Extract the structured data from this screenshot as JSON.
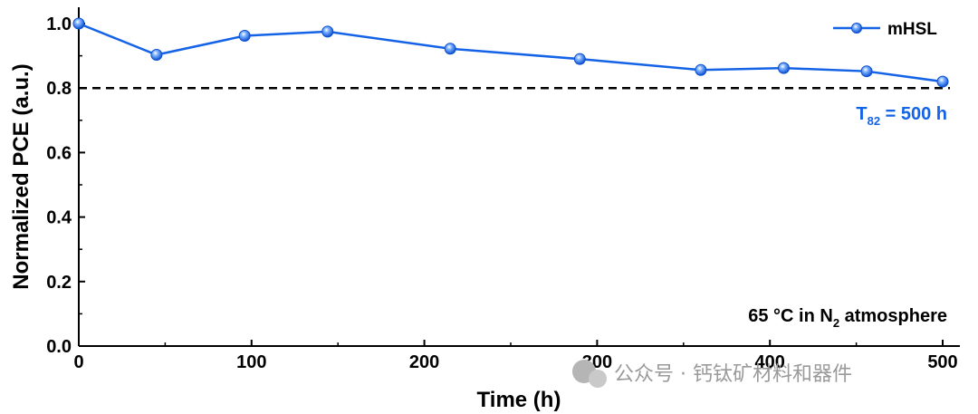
{
  "chart_data": {
    "type": "line",
    "x": [
      0,
      45,
      96,
      144,
      215,
      290,
      360,
      408,
      456,
      500
    ],
    "series": [
      {
        "name": "mHSL",
        "values": [
          1.0,
          0.903,
          0.962,
          0.975,
          0.922,
          0.89,
          0.856,
          0.862,
          0.852,
          0.82
        ]
      }
    ],
    "xlabel": "Time (h)",
    "ylabel": "Normalized PCE (a.u.)",
    "xlim": [
      0,
      500
    ],
    "ylim": [
      0,
      1.05
    ],
    "xticks": [
      "0",
      "100",
      "200",
      "300",
      "400",
      "500"
    ],
    "yticks": [
      "0.0",
      "0.2",
      "0.4",
      "0.6",
      "0.8",
      "1.0"
    ],
    "reference_line": {
      "y": 0.8,
      "style": "dashed"
    },
    "legend": {
      "position": "top-right"
    },
    "annotations": {
      "t82_main": "T",
      "t82_sub": "82",
      "t82_value": " = 500 h",
      "condition_pre": "65 °C in N",
      "condition_sub": "2",
      "condition_post": " atmosphere"
    },
    "grid": false,
    "colors": {
      "series": "#1463e6",
      "annotation": "#1463e6"
    }
  },
  "watermark": "公众号 · 钙钛矿材料和器件"
}
